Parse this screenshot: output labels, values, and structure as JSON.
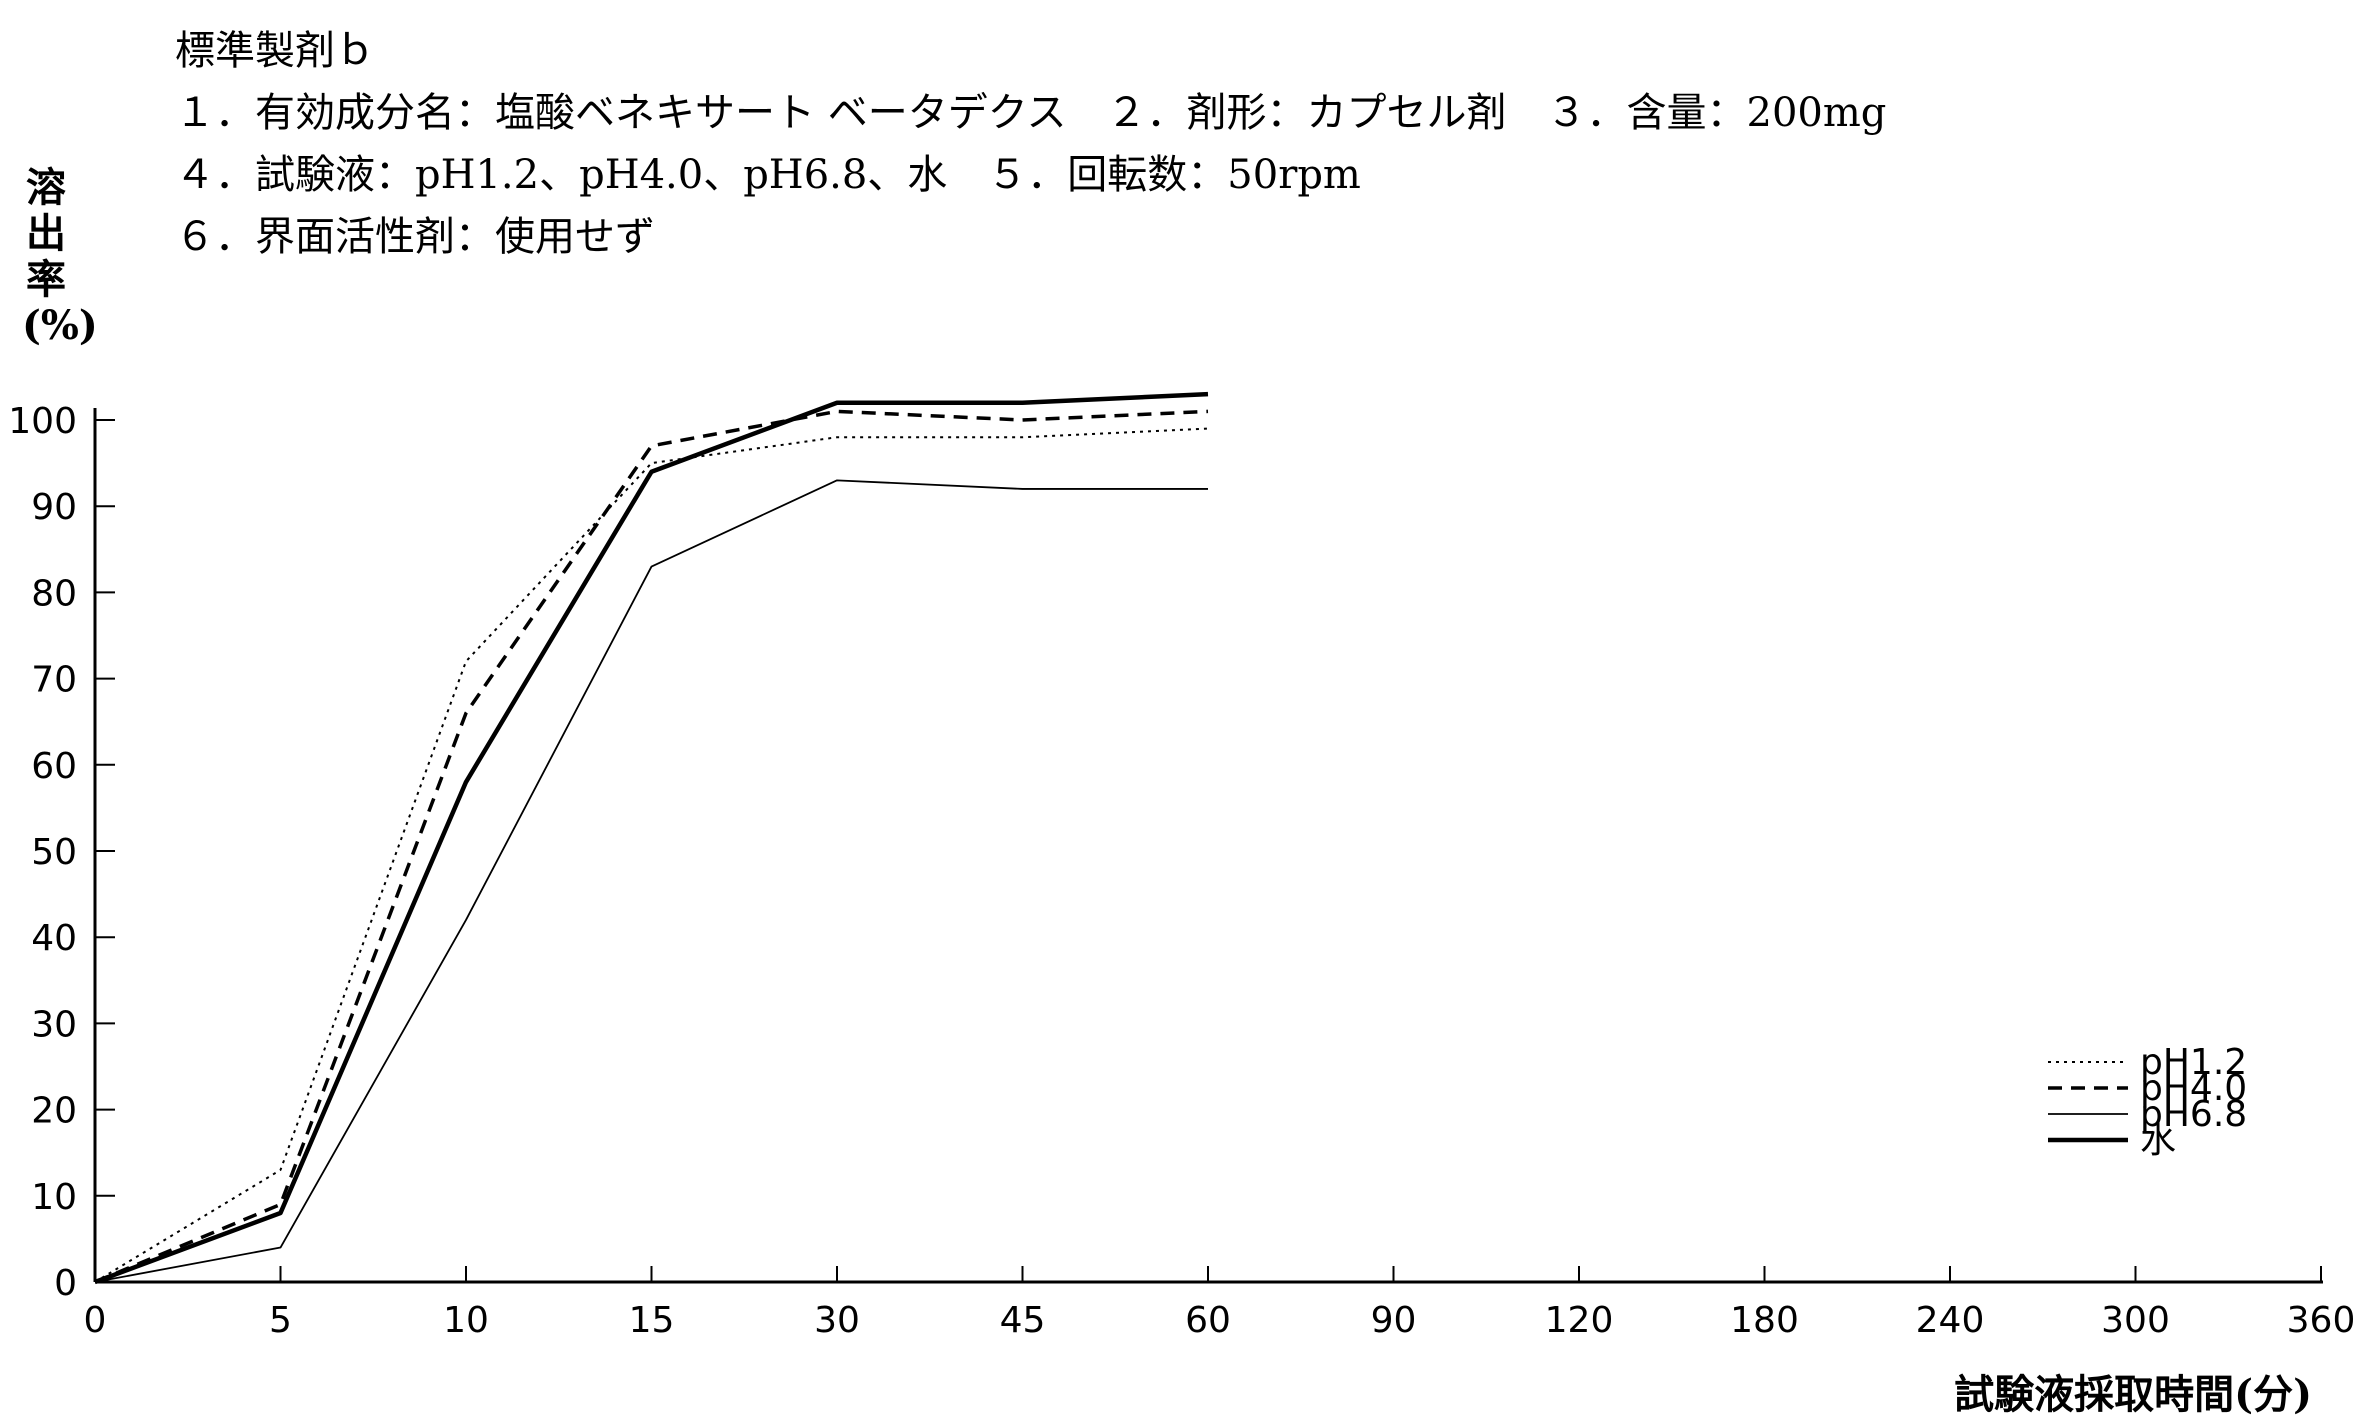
{
  "header": {
    "title": "標準製剤ｂ",
    "line1": "１．有効成分名：塩酸ベネキサート ベータデクス　２．剤形：カプセル剤　３．含量：200mg",
    "line2": "４．試験液：pH1.2、pH4.0、pH6.8、水　５．回転数：50rpm",
    "line3": "６．界面活性剤：使用せず"
  },
  "chart_data": {
    "type": "line",
    "title": "",
    "xlabel": "試験液採取時間(分)",
    "ylabel": "溶出率(%)",
    "ylim": [
      0,
      100
    ],
    "y_ticks": [
      "0",
      "10",
      "20",
      "30",
      "40",
      "50",
      "60",
      "70",
      "80",
      "90",
      "100"
    ],
    "categories": [
      "0",
      "5",
      "10",
      "15",
      "30",
      "45",
      "60",
      "90",
      "120",
      "180",
      "240",
      "300",
      "360"
    ],
    "x": [
      0,
      5,
      10,
      15,
      30,
      45,
      60
    ],
    "series": [
      {
        "name": "pH1.2",
        "style": "dotted",
        "values": [
          0,
          13,
          72,
          95,
          98,
          98,
          99
        ]
      },
      {
        "name": "pH4.0",
        "style": "dashed",
        "values": [
          0,
          9,
          66,
          97,
          101,
          100,
          101
        ]
      },
      {
        "name": "pH6.8",
        "style": "thin",
        "values": [
          0,
          4,
          42,
          83,
          93,
          92,
          92
        ]
      },
      {
        "name": "水",
        "style": "thick",
        "values": [
          0,
          8,
          58,
          94,
          102,
          102,
          103
        ]
      }
    ],
    "legend_position": "lower-right",
    "grid": false
  }
}
